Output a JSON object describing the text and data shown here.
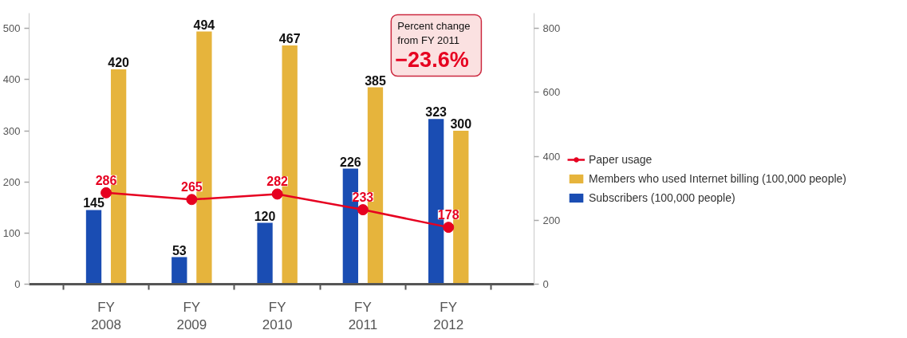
{
  "chart_data": {
    "type": "bar",
    "categories": [
      "FY 2008",
      "FY 2009",
      "FY 2010",
      "FY 2011",
      "FY 2012"
    ],
    "series": [
      {
        "name": "Subscribers (100,000 people)",
        "color": "#1a4db3",
        "values": [
          145,
          53,
          120,
          226,
          323
        ]
      },
      {
        "name": "Members who used Internet billing (100,000 people)",
        "color": "#e6b43c",
        "values": [
          420,
          494,
          467,
          385,
          300
        ]
      },
      {
        "name": "Paper usage",
        "type": "line",
        "axis": "y2",
        "color": "#e60020",
        "values": [
          286,
          265,
          282,
          233,
          178
        ]
      }
    ],
    "ylim": [
      0,
      530
    ],
    "yticks": [
      0,
      100,
      200,
      300,
      400,
      500
    ],
    "y2lim": [
      0,
      848
    ],
    "y2ticks": [
      0,
      200,
      400,
      600,
      800
    ],
    "legend": "right",
    "marker": "circle",
    "line_style": "solid",
    "data_labels": true,
    "annotations": [
      "Percent change from FY 2011",
      "−23.6%"
    ]
  }
}
